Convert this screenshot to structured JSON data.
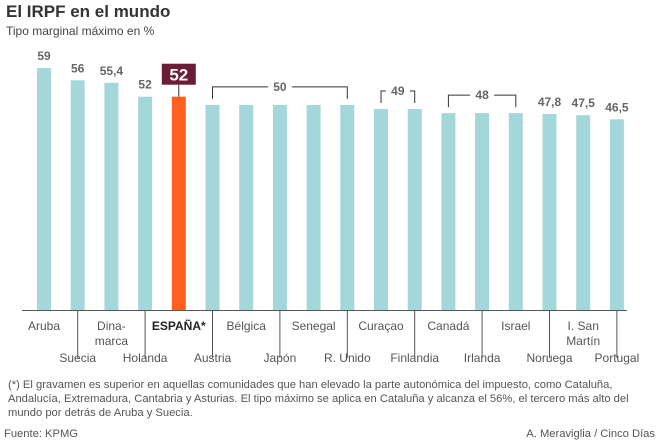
{
  "header": {
    "title": "El IRPF en el mundo",
    "subtitle": "Tipo marginal máximo en %"
  },
  "chart_data": {
    "type": "bar",
    "title": "El IRPF en el mundo",
    "subtitle": "Tipo marginal máximo en %",
    "categories": [
      "Aruba",
      "Suecia",
      "Dina-\nmarca",
      "Holanda",
      "ESPAÑA*",
      "Austria",
      "Bélgica",
      "Japón",
      "Senegal",
      "R. Unido",
      "Curaçao",
      "Finlandia",
      "Canadá",
      "Irlanda",
      "Israel",
      "Noruega",
      "I. San\nMartín",
      "Portugal"
    ],
    "values": [
      59,
      56,
      55.4,
      52,
      52,
      50,
      50,
      50,
      50,
      50,
      49,
      49,
      48,
      48,
      48,
      47.8,
      47.5,
      46.5
    ],
    "data_labels": [
      "59",
      "56",
      "55,4",
      "52",
      "52",
      "",
      "",
      "",
      "",
      "",
      "",
      "",
      "",
      "",
      "",
      "47,8",
      "47,5",
      "46,5"
    ],
    "group_labels": [
      {
        "label": "50",
        "from": "Austria",
        "to": "R. Unido"
      },
      {
        "label": "49",
        "from": "Curaçao",
        "to": "Finlandia"
      },
      {
        "label": "48",
        "from": "Canadá",
        "to": "Israel"
      }
    ],
    "highlight": "ESPAÑA*",
    "ylim": [
      0,
      59
    ],
    "grid": false,
    "colors": {
      "bar": "#a4d7d9",
      "highlight": "#ff5f1f",
      "highlight_label_bg": "#6b1d35"
    }
  },
  "footer": {
    "note": "(*) El gravamen es superior en aquellas comunidades que han elevado la parte autonómica del impuesto, como Cataluña, Andalucía, Extremadura, Cantabria y Asturias. El tipo máximo se aplica en Cataluña y alcanza el 56%, el tercero más alto del mundo por detrás de Aruba y Suecia.",
    "source": "Fuente: KPMG",
    "credit": "A. Meraviglia / Cinco Días"
  }
}
